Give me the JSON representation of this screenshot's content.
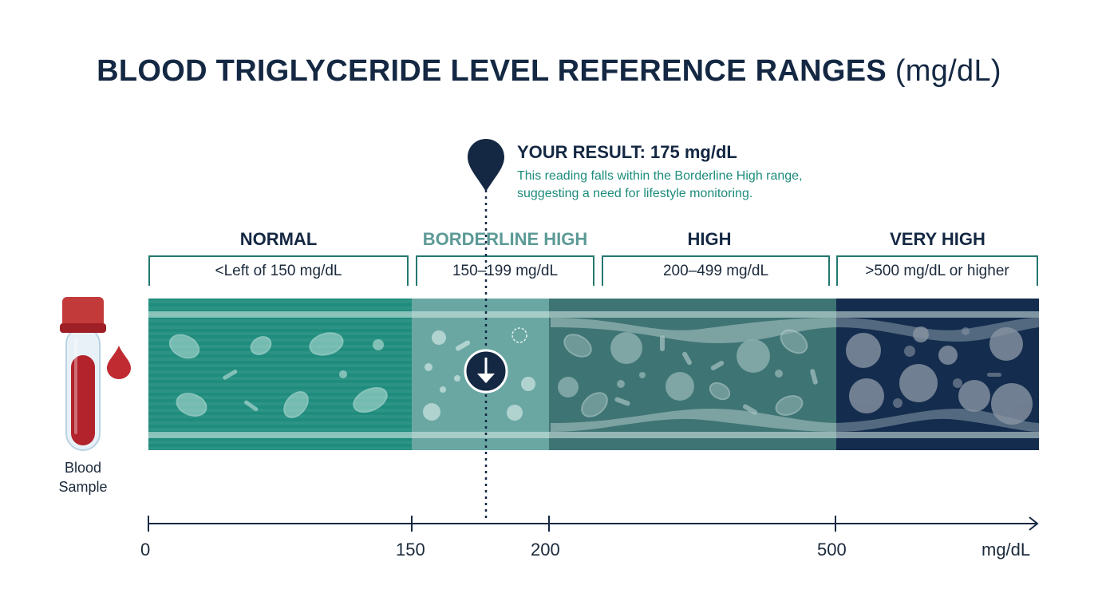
{
  "title": {
    "main": "BLOOD TRIGLYCERIDE LEVEL REFERENCE RANGES",
    "unit": "(mg/dL)"
  },
  "result": {
    "title": "YOUR RESULT: 175 mg/dL",
    "line1": "This reading falls within the Borderline High range,",
    "line2": "suggesting a need for lifestyle monitoring.",
    "value": 175
  },
  "categories": [
    {
      "label": "NORMAL",
      "range": "<Left of 150 mg/dL",
      "color": "#1f8c7d",
      "label_color": "#142843"
    },
    {
      "label": "BORDERLINE HIGH",
      "range": "150–199 mg/dL",
      "color": "#6aa7a3",
      "label_color": "#5c9a96"
    },
    {
      "label": "HIGH",
      "range": "200–499 mg/dL",
      "color": "#3f7474",
      "label_color": "#142843"
    },
    {
      "label": "VERY HIGH",
      "range": ">500 mg/dL or higher",
      "color": "#142c4d",
      "label_color": "#142843"
    }
  ],
  "sample": {
    "line1": "Blood",
    "line2": "Sample"
  },
  "axis": {
    "ticks": [
      "0",
      "150",
      "200",
      "500"
    ],
    "unit": "mg/dL"
  },
  "colors": {
    "navy": "#142843",
    "teal": "#1f8c7d",
    "blood": "#b3232b"
  },
  "icons": [
    "location-pin-icon",
    "down-arrow-icon",
    "blood-tube-icon",
    "blood-drop-icon"
  ]
}
